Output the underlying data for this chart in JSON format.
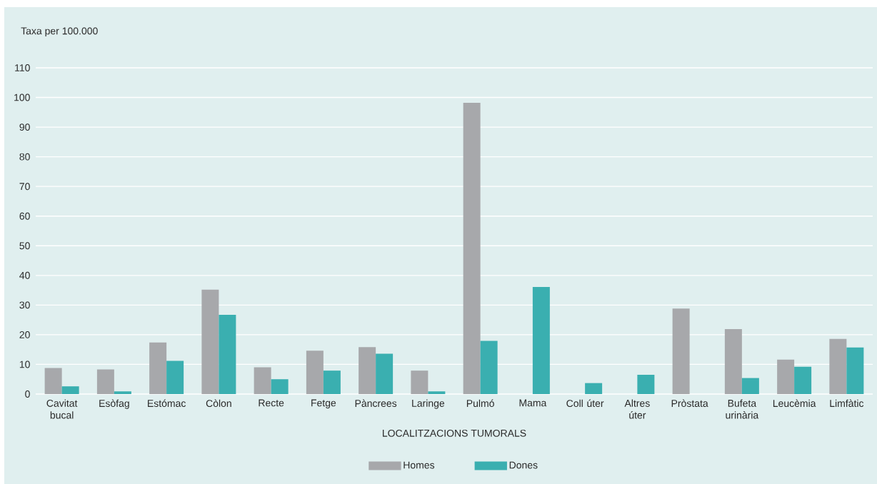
{
  "chart_data": {
    "type": "bar",
    "ylabel": "Taxa per 100.000",
    "xlabel": "LOCALITZACIONS TUMORALS",
    "categories": [
      "Cavitat bucal",
      "Esòfag",
      "Estómac",
      "Còlon",
      "Recte",
      "Fetge",
      "Pàncrees",
      "Laringe",
      "Pulmó",
      "Mama",
      "Coll úter",
      "Altres úter",
      "Pròstata",
      "Bufeta urinària",
      "Leucèmia",
      "Limfàtic"
    ],
    "series": [
      {
        "name": "Homes",
        "color": "#a7a8ab",
        "values": [
          8.8,
          8.3,
          17.4,
          35.2,
          9.0,
          14.6,
          15.8,
          7.9,
          98.2,
          null,
          null,
          null,
          28.8,
          21.9,
          11.6,
          18.6
        ]
      },
      {
        "name": "Dones",
        "color": "#3aafb0",
        "values": [
          2.6,
          0.9,
          11.2,
          26.7,
          5.0,
          7.9,
          13.6,
          0.9,
          17.9,
          36.1,
          3.7,
          6.5,
          null,
          5.4,
          9.2,
          15.7
        ]
      }
    ],
    "ylim": [
      0,
      110
    ],
    "yticks": [
      0,
      10,
      20,
      30,
      40,
      50,
      60,
      70,
      80,
      90,
      100,
      110
    ],
    "grid": "y",
    "legend": "bottom"
  }
}
